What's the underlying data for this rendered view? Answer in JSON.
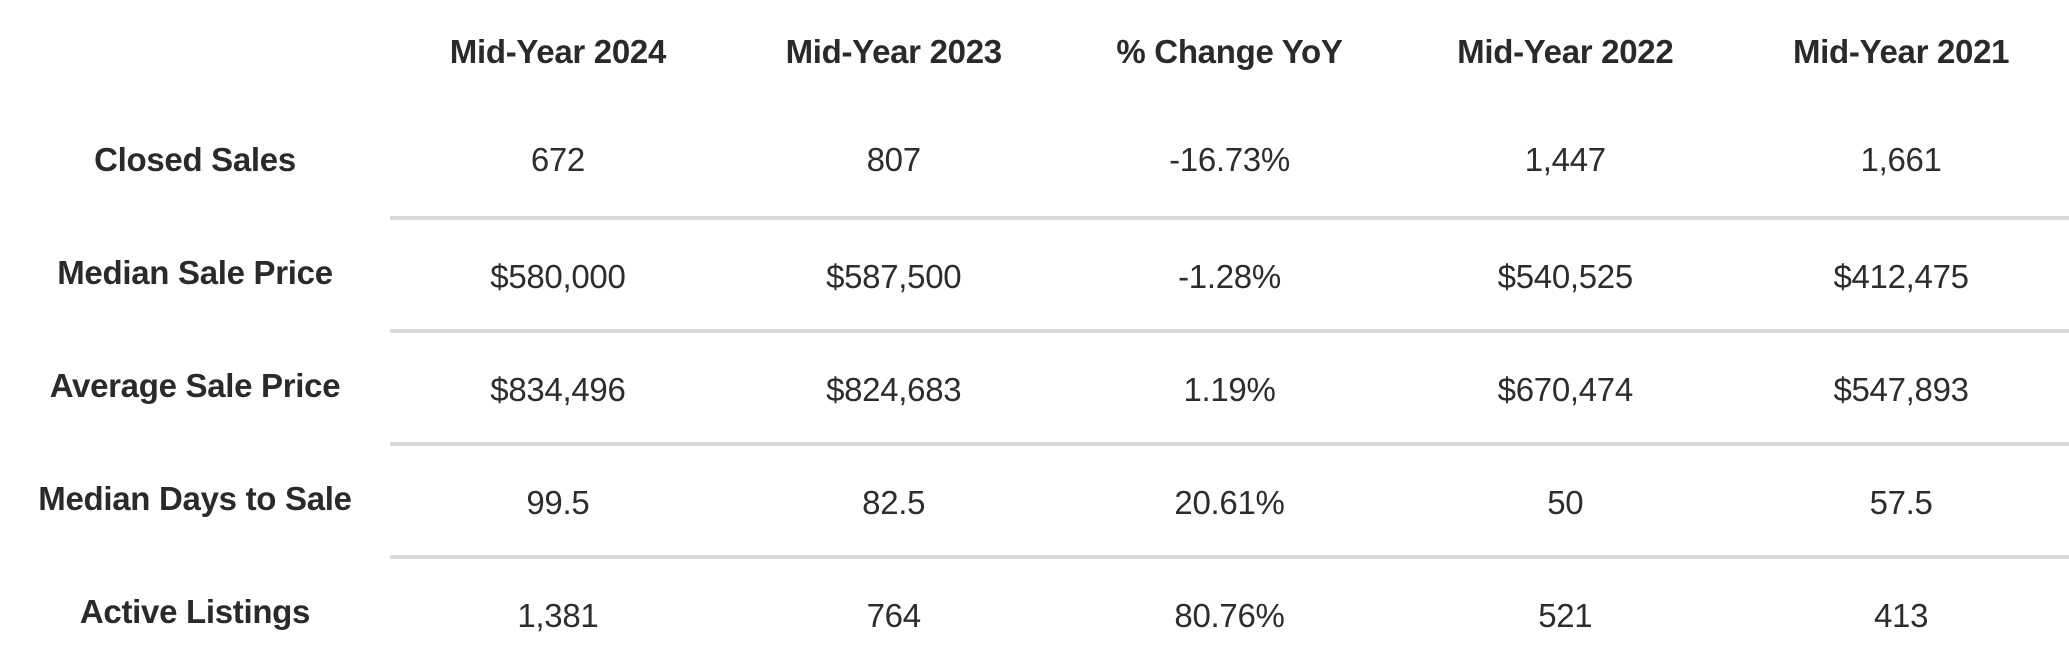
{
  "colors": {
    "background": "#ffffff",
    "text": "#2b2a2a",
    "divider": "#d9d9d9"
  },
  "chart_data": {
    "type": "table",
    "title": "",
    "columns": [
      "",
      "Mid-Year 2024",
      "Mid-Year 2023",
      "% Change YoY",
      "Mid-Year 2022",
      "Mid-Year 2021"
    ],
    "rows": [
      {
        "label": "Closed Sales",
        "values": [
          "672",
          "807",
          "-16.73%",
          "1,447",
          "1,661"
        ]
      },
      {
        "label": "Median Sale Price",
        "values": [
          "$580,000",
          "$587,500",
          "-1.28%",
          "$540,525",
          "$412,475"
        ]
      },
      {
        "label": "Average Sale Price",
        "values": [
          "$834,496",
          "$824,683",
          "1.19%",
          "$670,474",
          "$547,893"
        ]
      },
      {
        "label": "Median Days to Sale",
        "values": [
          "99.5",
          "82.5",
          "20.61%",
          "50",
          "57.5"
        ]
      },
      {
        "label": "Active Listings",
        "values": [
          "1,381",
          "764",
          "80.76%",
          "521",
          "413"
        ]
      }
    ],
    "layout": {
      "grid": "horizontal dividers between data rows only, data columns only",
      "legend": "none",
      "label_column_alignment": "center",
      "value_alignment": "center"
    }
  }
}
